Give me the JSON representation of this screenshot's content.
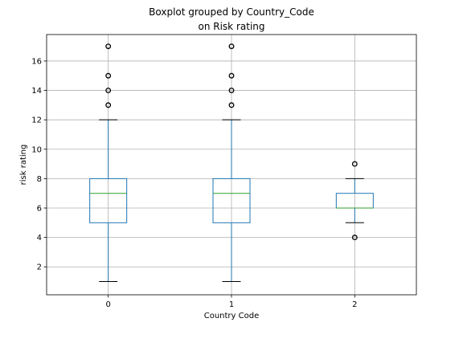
{
  "chart_data": {
    "type": "box",
    "title": "Boxplot grouped by Country_Code",
    "subtitle": "on Risk rating",
    "xlabel": "Country Code",
    "ylabel": "risk rating",
    "categories": [
      "0",
      "1",
      "2"
    ],
    "ylim": [
      0.1,
      17.8
    ],
    "yticks": [
      2,
      4,
      6,
      8,
      10,
      12,
      14,
      16
    ],
    "grid": true,
    "colors": {
      "box": "#1f77b4",
      "median": "#2ca02c",
      "whisker": "#1f77b4",
      "cap": "#000000",
      "grid": "#b0b0b0"
    },
    "boxes": [
      {
        "category": "0",
        "whislo": 1,
        "q1": 5,
        "median": 7,
        "q3": 8,
        "whishi": 12,
        "fliers": [
          13,
          14,
          15,
          17
        ]
      },
      {
        "category": "1",
        "whislo": 1,
        "q1": 5,
        "median": 7,
        "q3": 8,
        "whishi": 12,
        "fliers": [
          13,
          14,
          15,
          17
        ]
      },
      {
        "category": "2",
        "whislo": 5,
        "q1": 6,
        "median": 6,
        "q3": 7,
        "whishi": 8,
        "fliers": [
          4,
          9
        ]
      }
    ]
  }
}
